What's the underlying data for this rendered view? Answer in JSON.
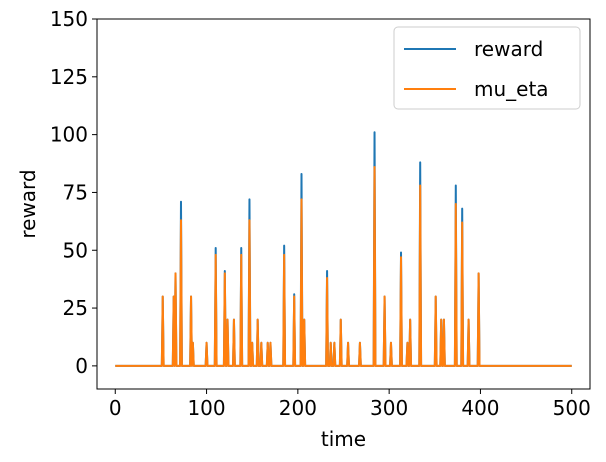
{
  "chart_data": {
    "type": "line",
    "title": "",
    "xlabel": "time",
    "ylabel": "reward",
    "xlim": [
      -20,
      520
    ],
    "ylim": [
      -10,
      150
    ],
    "xticks": [
      0,
      100,
      200,
      300,
      400,
      500
    ],
    "yticks": [
      0,
      25,
      50,
      75,
      100,
      125,
      150
    ],
    "grid": false,
    "legend_position": "top-right",
    "series": [
      {
        "name": "reward",
        "color": "#1f77b4",
        "spikes": [
          [
            52,
            30
          ],
          [
            64,
            30
          ],
          [
            66,
            40
          ],
          [
            72,
            71
          ],
          [
            83,
            30
          ],
          [
            85,
            10
          ],
          [
            100,
            10
          ],
          [
            110,
            51
          ],
          [
            120,
            41
          ],
          [
            123,
            20
          ],
          [
            130,
            20
          ],
          [
            138,
            51
          ],
          [
            147,
            72
          ],
          [
            150,
            10
          ],
          [
            156,
            20
          ],
          [
            160,
            10
          ],
          [
            167,
            10
          ],
          [
            170,
            10
          ],
          [
            185,
            52
          ],
          [
            196,
            31
          ],
          [
            204,
            83
          ],
          [
            207,
            20
          ],
          [
            232,
            41
          ],
          [
            236,
            10
          ],
          [
            240,
            10
          ],
          [
            247,
            20
          ],
          [
            255,
            10
          ],
          [
            268,
            10
          ],
          [
            284,
            101
          ],
          [
            295,
            30
          ],
          [
            302,
            10
          ],
          [
            313,
            49
          ],
          [
            320,
            10
          ],
          [
            323,
            20
          ],
          [
            334,
            88
          ],
          [
            351,
            30
          ],
          [
            357,
            20
          ],
          [
            360,
            20
          ],
          [
            373,
            78
          ],
          [
            380,
            68
          ],
          [
            387,
            20
          ],
          [
            398,
            40
          ]
        ]
      },
      {
        "name": "mu_eta",
        "color": "#ff7f0e",
        "spikes": [
          [
            52,
            30
          ],
          [
            64,
            30
          ],
          [
            66,
            40
          ],
          [
            72,
            63
          ],
          [
            83,
            30
          ],
          [
            85,
            10
          ],
          [
            100,
            10
          ],
          [
            110,
            48
          ],
          [
            120,
            40
          ],
          [
            123,
            20
          ],
          [
            130,
            20
          ],
          [
            138,
            48
          ],
          [
            147,
            63
          ],
          [
            150,
            10
          ],
          [
            156,
            20
          ],
          [
            160,
            10
          ],
          [
            167,
            10
          ],
          [
            170,
            10
          ],
          [
            185,
            48
          ],
          [
            196,
            30
          ],
          [
            204,
            72
          ],
          [
            207,
            20
          ],
          [
            232,
            38
          ],
          [
            236,
            10
          ],
          [
            240,
            10
          ],
          [
            247,
            20
          ],
          [
            255,
            10
          ],
          [
            268,
            10
          ],
          [
            284,
            86
          ],
          [
            295,
            30
          ],
          [
            302,
            10
          ],
          [
            313,
            47
          ],
          [
            320,
            10
          ],
          [
            323,
            20
          ],
          [
            334,
            78
          ],
          [
            351,
            30
          ],
          [
            357,
            20
          ],
          [
            360,
            20
          ],
          [
            373,
            70
          ],
          [
            380,
            62
          ],
          [
            387,
            20
          ],
          [
            398,
            40
          ]
        ]
      }
    ],
    "baseline": 0,
    "x_range": [
      0,
      500
    ]
  }
}
